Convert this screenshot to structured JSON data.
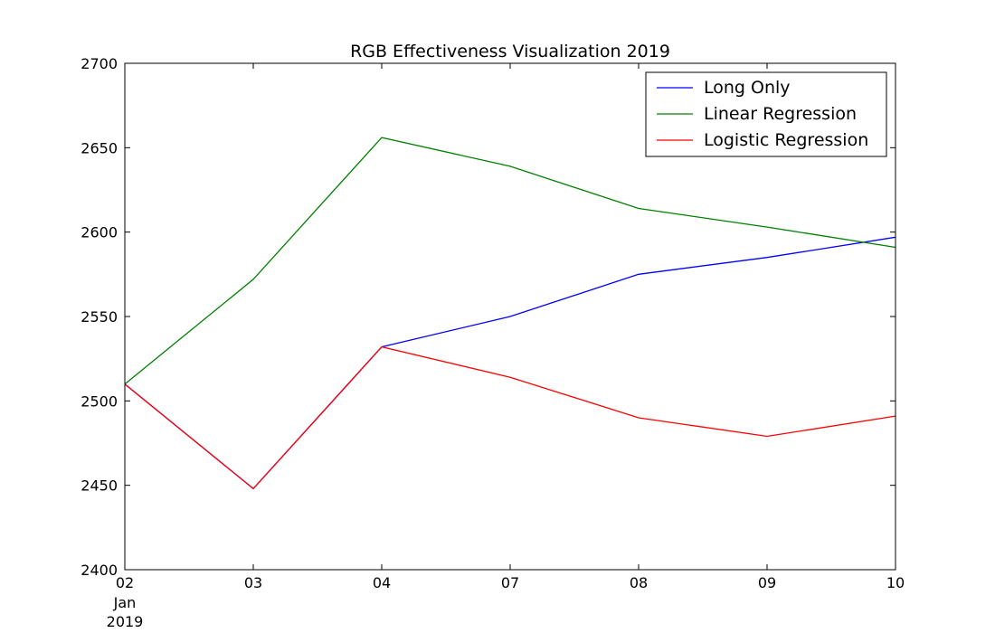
{
  "chart_data": {
    "type": "line",
    "title": "RGB Effectiveness Visualization 2019",
    "xlabel": "",
    "ylabel": "",
    "categories": [
      "2019-01-02",
      "2019-01-03",
      "2019-01-04",
      "2019-01-07",
      "2019-01-08",
      "2019-01-09",
      "2019-01-10"
    ],
    "x_tick_labels": [
      "02",
      "03",
      "04",
      "07",
      "08",
      "09",
      "10"
    ],
    "x_tick_sublabels": [
      "Jan",
      "2019"
    ],
    "ylim": [
      2400,
      2700
    ],
    "y_ticks": [
      2400,
      2450,
      2500,
      2550,
      2600,
      2650,
      2700
    ],
    "grid": false,
    "legend_position": "top-right",
    "series": [
      {
        "name": "Long Only",
        "color": "#0000ff",
        "values": [
          2510,
          2448,
          2532,
          2550,
          2575,
          2585,
          2597
        ]
      },
      {
        "name": "Linear Regression",
        "color": "#008000",
        "values": [
          2510,
          2572,
          2656,
          2639,
          2614,
          2603,
          2591
        ]
      },
      {
        "name": "Logistic Regression",
        "color": "#ff0000",
        "values": [
          2510,
          2448,
          2532,
          2514,
          2490,
          2479,
          2491
        ]
      }
    ]
  }
}
